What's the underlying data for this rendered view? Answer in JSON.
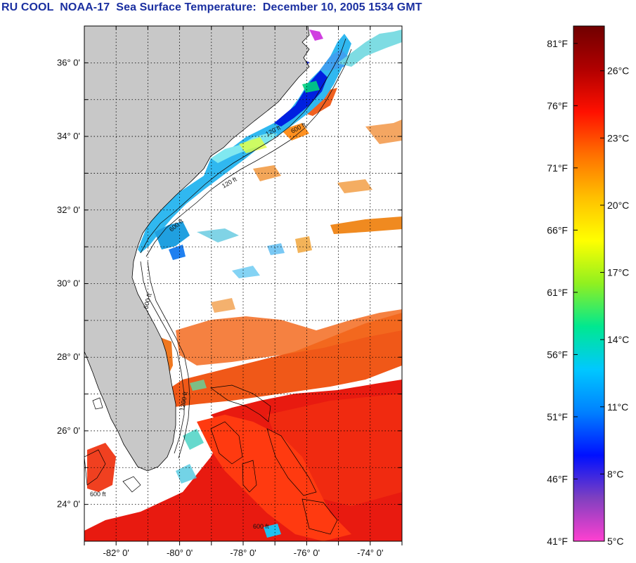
{
  "title": "RU COOL  NOAA-17  Sea Surface Temperature:  December 10, 2005 1534 GMT",
  "map": {
    "lat_labels": [
      "36° 0'",
      "34° 0'",
      "32° 0'",
      "30° 0'",
      "28° 0'",
      "26° 0'",
      "24° 0'"
    ],
    "lat_values": [
      36,
      34,
      32,
      30,
      28,
      26,
      24
    ],
    "lon_labels": [
      "-82° 0'",
      "-80° 0'",
      "-78° 0'",
      "-76° 0'",
      "-74° 0'"
    ],
    "lon_values": [
      -82,
      -80,
      -78,
      -76,
      -74
    ],
    "lat_range": [
      23.0,
      37.0
    ],
    "lon_range": [
      -83.0,
      -73.0
    ],
    "gridlines": true,
    "land_color": "#c8c8c8",
    "isobath_labels": [
      "120 ft",
      "600 ft",
      "120 ft",
      "600 ft",
      "600 ft",
      "1200 ft",
      "600 ft",
      "600 ft"
    ]
  },
  "colorbar": {
    "fahrenheit_labels": [
      "81°F",
      "76°F",
      "71°F",
      "66°F",
      "61°F",
      "56°F",
      "51°F",
      "46°F",
      "41°F"
    ],
    "fahrenheit_values": [
      81,
      76,
      71,
      66,
      61,
      56,
      51,
      46,
      41
    ],
    "celsius_labels": [
      "26°C",
      "23°C",
      "20°C",
      "17°C",
      "14°C",
      "11°C",
      "8°C",
      "5°C"
    ],
    "celsius_values": [
      26,
      23,
      20,
      17,
      14,
      11,
      8,
      5
    ],
    "range_celsius": [
      5,
      28
    ],
    "stops": [
      "#ff40d0",
      "#8040c0",
      "#0010ff",
      "#0080ff",
      "#00c8ff",
      "#00e890",
      "#90f020",
      "#ffff00",
      "#ffc000",
      "#ff7000",
      "#ff1000",
      "#b00000",
      "#700000"
    ]
  }
}
